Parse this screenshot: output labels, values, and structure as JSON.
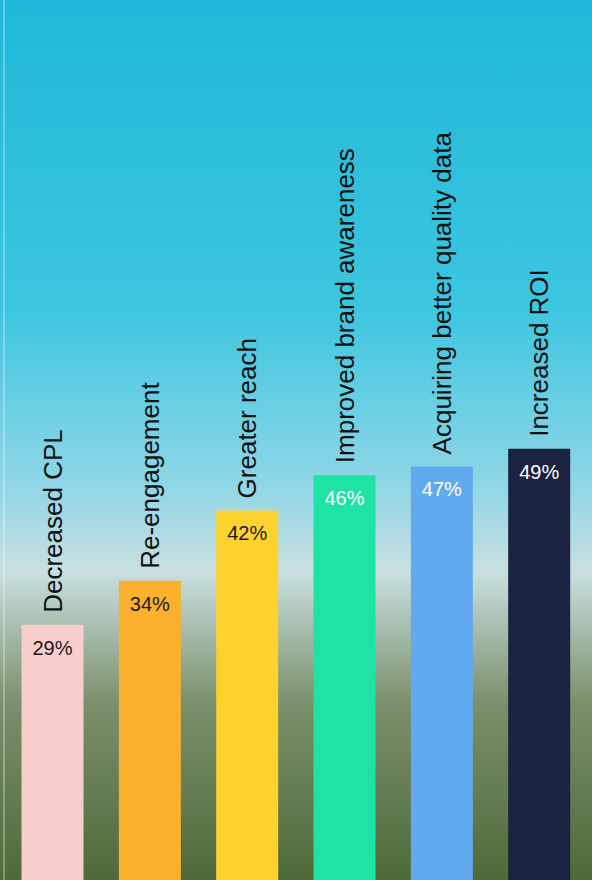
{
  "chart_data": {
    "type": "bar",
    "categories": [
      "Decreased CPL",
      "Re-engagement",
      "Greater reach",
      "Improved brand awareness",
      "Acquiring better quality data",
      "Increased ROI"
    ],
    "values": [
      29,
      34,
      42,
      46,
      47,
      49
    ],
    "value_labels": [
      "29%",
      "34%",
      "42%",
      "46%",
      "47%",
      "49%"
    ],
    "colors": [
      "#f9cdcb",
      "#fcb12e",
      "#fdd22e",
      "#1fe3a5",
      "#62aaf0",
      "#1b2340"
    ],
    "ylim": [
      0,
      100
    ],
    "yticks": [
      0,
      100
    ],
    "data_labels": true,
    "tick_labels": false,
    "grid": false
  }
}
